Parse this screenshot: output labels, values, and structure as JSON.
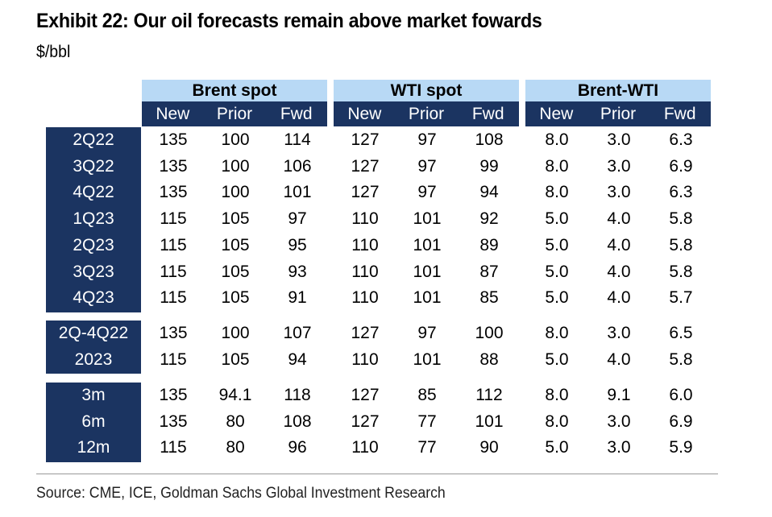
{
  "title": "Exhibit 22: Our oil forecasts remain above market fowards",
  "subtitle": "$/bbl",
  "source": "Source: CME, ICE, Goldman Sachs Global Investment Research",
  "table": {
    "groups": [
      "Brent spot",
      "WTI spot",
      "Brent-WTI"
    ],
    "subheaders": [
      "New",
      "Prior",
      "Fwd"
    ],
    "blocks": [
      {
        "rows": [
          {
            "label": "2Q22",
            "values": [
              "135",
              "100",
              "114",
              "127",
              "97",
              "108",
              "8.0",
              "3.0",
              "6.3"
            ]
          },
          {
            "label": "3Q22",
            "values": [
              "135",
              "100",
              "106",
              "127",
              "97",
              "99",
              "8.0",
              "3.0",
              "6.9"
            ]
          },
          {
            "label": "4Q22",
            "values": [
              "135",
              "100",
              "101",
              "127",
              "97",
              "94",
              "8.0",
              "3.0",
              "6.3"
            ]
          },
          {
            "label": "1Q23",
            "values": [
              "115",
              "105",
              "97",
              "110",
              "101",
              "92",
              "5.0",
              "4.0",
              "5.8"
            ]
          },
          {
            "label": "2Q23",
            "values": [
              "115",
              "105",
              "95",
              "110",
              "101",
              "89",
              "5.0",
              "4.0",
              "5.8"
            ]
          },
          {
            "label": "3Q23",
            "values": [
              "115",
              "105",
              "93",
              "110",
              "101",
              "87",
              "5.0",
              "4.0",
              "5.8"
            ]
          },
          {
            "label": "4Q23",
            "values": [
              "115",
              "105",
              "91",
              "110",
              "101",
              "85",
              "5.0",
              "4.0",
              "5.7"
            ]
          }
        ]
      },
      {
        "rows": [
          {
            "label": "2Q-4Q22",
            "values": [
              "135",
              "100",
              "107",
              "127",
              "97",
              "100",
              "8.0",
              "3.0",
              "6.5"
            ]
          },
          {
            "label": "2023",
            "values": [
              "115",
              "105",
              "94",
              "110",
              "101",
              "88",
              "5.0",
              "4.0",
              "5.8"
            ]
          }
        ]
      },
      {
        "rows": [
          {
            "label": "3m",
            "values": [
              "135",
              "94.1",
              "118",
              "127",
              "85",
              "112",
              "8.0",
              "9.1",
              "6.0"
            ]
          },
          {
            "label": "6m",
            "values": [
              "135",
              "80",
              "108",
              "127",
              "77",
              "101",
              "8.0",
              "3.0",
              "6.9"
            ]
          },
          {
            "label": "12m",
            "values": [
              "115",
              "80",
              "96",
              "110",
              "77",
              "90",
              "5.0",
              "3.0",
              "5.9"
            ]
          }
        ]
      }
    ]
  },
  "colors": {
    "header_dark": "#1b3461",
    "header_light": "#b8d9f5"
  }
}
